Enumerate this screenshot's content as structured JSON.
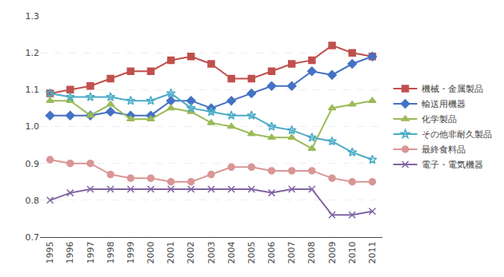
{
  "chart_data": {
    "type": "line",
    "x": [
      1995,
      1996,
      1997,
      1998,
      1999,
      2000,
      2001,
      2002,
      2003,
      2004,
      2005,
      2006,
      2007,
      2008,
      2009,
      2010,
      2011
    ],
    "series": [
      {
        "name": "機械・金属製品",
        "color": "#C0504D",
        "marker": "square",
        "values": [
          1.09,
          1.1,
          1.11,
          1.13,
          1.15,
          1.15,
          1.18,
          1.19,
          1.17,
          1.13,
          1.13,
          1.15,
          1.17,
          1.18,
          1.22,
          1.2,
          1.19
        ]
      },
      {
        "name": "輸送用機器",
        "color": "#4472C4",
        "marker": "diamond",
        "values": [
          1.03,
          1.03,
          1.03,
          1.04,
          1.03,
          1.03,
          1.07,
          1.07,
          1.05,
          1.07,
          1.09,
          1.11,
          1.11,
          1.15,
          1.14,
          1.17,
          1.19
        ]
      },
      {
        "name": "化学製品",
        "color": "#9BBB59",
        "marker": "triangle-up",
        "values": [
          1.07,
          1.07,
          1.03,
          1.06,
          1.02,
          1.02,
          1.05,
          1.04,
          1.01,
          1.0,
          0.98,
          0.97,
          0.97,
          0.94,
          1.05,
          1.06,
          1.07
        ]
      },
      {
        "name": "その他非耐久製品",
        "color": "#4BACC6",
        "marker": "star-open",
        "values": [
          1.09,
          1.08,
          1.08,
          1.08,
          1.07,
          1.07,
          1.09,
          1.05,
          1.04,
          1.03,
          1.03,
          1.0,
          0.99,
          0.97,
          0.96,
          0.93,
          0.91
        ]
      },
      {
        "name": "最終食料品",
        "color": "#D99694",
        "marker": "circle",
        "values": [
          0.91,
          0.9,
          0.9,
          0.87,
          0.86,
          0.86,
          0.85,
          0.85,
          0.87,
          0.89,
          0.89,
          0.88,
          0.88,
          0.88,
          0.86,
          0.85,
          0.85
        ]
      },
      {
        "name": "電子・電気機器",
        "color": "#8064A2",
        "marker": "x-thin-open",
        "values": [
          0.8,
          0.82,
          0.83,
          0.83,
          0.83,
          0.83,
          0.83,
          0.83,
          0.83,
          0.83,
          0.83,
          0.82,
          0.83,
          0.83,
          0.76,
          0.76,
          0.77
        ]
      }
    ],
    "xlim": [
      1994.5,
      2011.5
    ],
    "xticks": [
      1995,
      1996,
      1997,
      1998,
      1999,
      2000,
      2001,
      2002,
      2003,
      2004,
      2005,
      2006,
      2007,
      2008,
      2009,
      2010,
      2011
    ],
    "ylim": [
      0.7,
      1.3
    ],
    "yticks": [
      0.7,
      0.8,
      0.9,
      {
        "value": 1.0,
        "label": "1.0"
      },
      1.1,
      1.2,
      1.3
    ],
    "grid": "y",
    "legend": "right"
  }
}
